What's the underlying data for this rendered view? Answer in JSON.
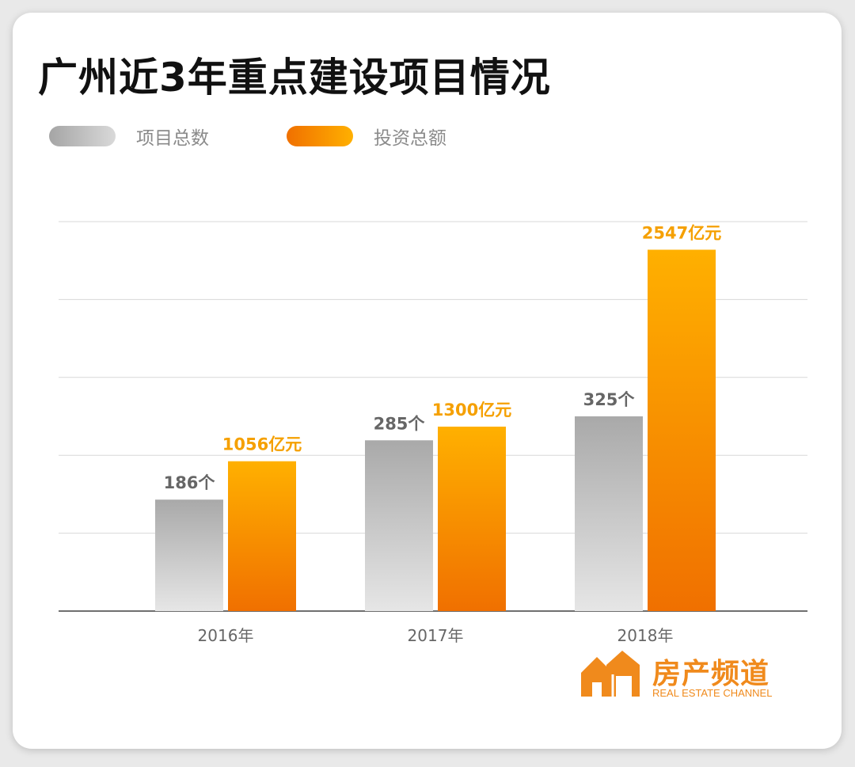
{
  "title": "广州近3年重点建设项目情况",
  "colors": {
    "gray_top": "#a9a9a9",
    "gray_bottom": "#e4e4e4",
    "orange_top": "#ffb000",
    "orange_bottom": "#f07000",
    "orange_label": "#f5a000",
    "gray_label": "#666666",
    "brand": "#f08a1c"
  },
  "legend": {
    "items": [
      {
        "label": "项目总数",
        "color": "gray"
      },
      {
        "label": "投资总额",
        "color": "orange"
      }
    ]
  },
  "chart_data": {
    "type": "bar",
    "title": "广州近3年重点建设项目情况",
    "categories": [
      "2016年",
      "2017年",
      "2018年"
    ],
    "series": [
      {
        "name": "项目总数",
        "values": [
          186,
          285,
          325
        ],
        "data_labels": [
          "186个",
          "285个",
          "325个"
        ]
      },
      {
        "name": "投资总额",
        "values": [
          1056,
          1300,
          2547
        ],
        "data_labels": [
          "1056亿元",
          "1300亿元",
          "2547亿元"
        ]
      }
    ],
    "grid": true,
    "legend_position": "top-left",
    "y_axis_labels_shown": false
  },
  "brand": {
    "name_cn": "房产频道",
    "name_en": "REAL ESTATE CHANNEL"
  }
}
